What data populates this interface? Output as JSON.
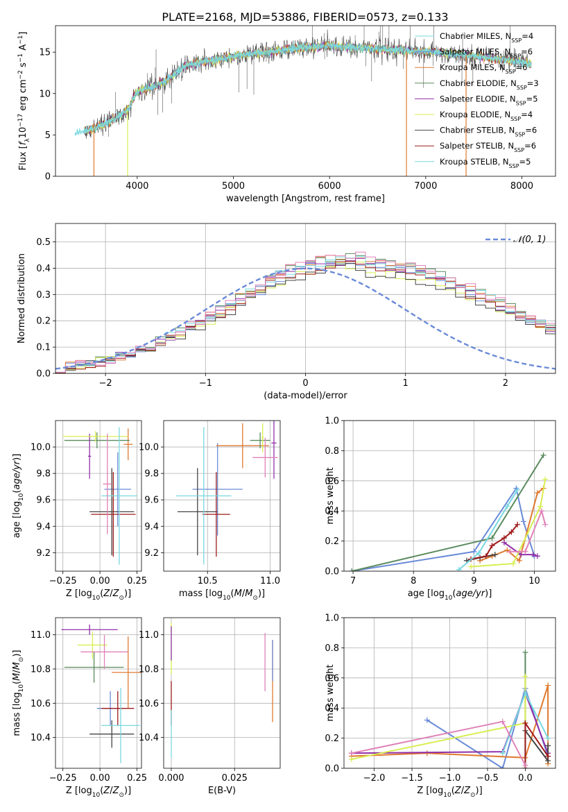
{
  "figure": {
    "title": "PLATE=2168, MJD=53886, FIBERID=0573, z=0.133"
  },
  "colors": {
    "blue": "#6a8ad8",
    "orange": "#e07a30",
    "green": "#5a8a5e",
    "purple": "#9030a8",
    "yellow": "#d8ee50",
    "gray": "#444444",
    "red": "#9e1a1a",
    "cyan": "#78d8e0",
    "pink": "#e080b8",
    "grid": "#b0b0b0"
  },
  "chart_data": [
    {
      "id": "spectrum",
      "type": "line",
      "xlabel": "wavelength [Angstrom, rest frame]",
      "ylabel": "Flux [f_λ10^-17 erg cm^-2 s^-1 A^-1]",
      "xlim": [
        3150,
        8350
      ],
      "ylim": [
        0,
        18.2
      ],
      "xticks": [
        4000,
        5000,
        6000,
        7000,
        8000
      ],
      "yticks": [
        0,
        5,
        10,
        15
      ],
      "grid": false,
      "legend_position": "top-right",
      "continuum": {
        "x": [
          3350,
          3500,
          3600,
          3700,
          3800,
          3900,
          4000,
          4100,
          4200,
          4300,
          4400,
          4500,
          4600,
          4700,
          4800,
          4900,
          5000,
          5200,
          5400,
          5600,
          5800,
          6000,
          6200,
          6400,
          6600,
          6800,
          7000,
          7200,
          7400,
          7600,
          7800,
          8000,
          8100
        ],
        "y": [
          5.2,
          5.6,
          6.0,
          6.5,
          7.2,
          8.0,
          10.3,
          10.6,
          11.0,
          11.5,
          12.5,
          13.4,
          13.6,
          13.9,
          14.0,
          14.2,
          14.5,
          14.8,
          15.1,
          15.4,
          15.6,
          15.8,
          15.6,
          15.5,
          15.3,
          15.2,
          15.1,
          14.9,
          14.7,
          14.4,
          14.1,
          13.8,
          13.5
        ]
      },
      "series": [
        {
          "name": "Chabrier MILES, N_SSP=4",
          "color": "#78d8e0"
        },
        {
          "name": "Salpeter MILES, N_SSP=6",
          "color": "#6a8ad8"
        },
        {
          "name": "Kroupa MILES, N_SSP=6",
          "color": "#e07a30"
        },
        {
          "name": "Chabrier ELODIE, N_SSP=3",
          "color": "#5a8a5e"
        },
        {
          "name": "Salpeter ELODIE, N_SSP=5",
          "color": "#9030a8"
        },
        {
          "name": "Kroupa ELODIE, N_SSP=4",
          "color": "#d8ee50"
        },
        {
          "name": "Chabrier STELIB, N_SSP=6",
          "color": "#444444"
        },
        {
          "name": "Salpeter STELIB, N_SSP=6",
          "color": "#9e1a1a"
        },
        {
          "name": "Kroupa STELIB, N_SSP=5",
          "color": "#78d8e0"
        }
      ],
      "legend_labels": [
        {
          "base": "Chabrier MILES, N",
          "sub": "SSP",
          "tail": "=4"
        },
        {
          "base": "Salpeter MILES, N",
          "sub": "SSP",
          "tail": "=6"
        },
        {
          "base": "Kroupa MILES, N",
          "sub": "SSP",
          "tail": "=6"
        },
        {
          "base": "Chabrier ELODIE, N",
          "sub": "SSP",
          "tail": "=3"
        },
        {
          "base": "Salpeter ELODIE, N",
          "sub": "SSP",
          "tail": "=5"
        },
        {
          "base": "Kroupa ELODIE, N",
          "sub": "SSP",
          "tail": "=4"
        },
        {
          "base": "Chabrier STELIB, N",
          "sub": "SSP",
          "tail": "=6"
        },
        {
          "base": "Salpeter STELIB, N",
          "sub": "SSP",
          "tail": "=6"
        },
        {
          "base": "Kroupa STELIB, N",
          "sub": "SSP",
          "tail": "=5"
        }
      ],
      "drops": [
        {
          "x": 3550,
          "color": "#e07a30"
        },
        {
          "x": 3900,
          "color": "#d8ee50"
        },
        {
          "x": 6800,
          "color": "#e07a30"
        },
        {
          "x": 7420,
          "color": "#e07a30"
        }
      ]
    },
    {
      "id": "residuals",
      "type": "histogram",
      "xlabel": "(data-model)/error",
      "ylabel": "Normed distribution",
      "xlim": [
        -2.5,
        2.5
      ],
      "ylim": [
        0,
        0.57
      ],
      "xticks": [
        -2,
        -1,
        0,
        1,
        2
      ],
      "yticks": [
        0.0,
        0.1,
        0.2,
        0.3,
        0.4,
        0.5
      ],
      "grid": true,
      "legend": "𝒩(0, 1)",
      "legend_position": "top-right",
      "bin_width": 0.1,
      "bin_start": -2.5,
      "reference_density": [
        0.018,
        0.022,
        0.027,
        0.033,
        0.04,
        0.048,
        0.058,
        0.068,
        0.08,
        0.093,
        0.108,
        0.124,
        0.141,
        0.159,
        0.178,
        0.197,
        0.218,
        0.238,
        0.258,
        0.278,
        0.296,
        0.314,
        0.33,
        0.345,
        0.358,
        0.369,
        0.378,
        0.385,
        0.391,
        0.395,
        0.398,
        0.398,
        0.397,
        0.394,
        0.389,
        0.382,
        0.374,
        0.364,
        0.352,
        0.339,
        0.325,
        0.31,
        0.294,
        0.277,
        0.26,
        0.242,
        0.224,
        0.207,
        0.189,
        0.172,
        0.156
      ],
      "series_colors": [
        "#6a8ad8",
        "#e07a30",
        "#5a8a5e",
        "#9030a8",
        "#d8ee50",
        "#444444",
        "#9e1a1a",
        "#78d8e0",
        "#e080b8"
      ]
    },
    {
      "id": "age_vs_Z",
      "type": "errorbar",
      "xlabel": "Z [log10(Z/Z⊙)]",
      "ylabel": "age  [log10(age/yr)]",
      "xlim": [
        -0.3,
        0.28
      ],
      "ylim": [
        9.06,
        10.2
      ],
      "xticks": [
        -0.25,
        0.0,
        0.25
      ],
      "xticklabels": [
        "−0.25",
        "0.00",
        "0.25"
      ],
      "yticks": [
        9.2,
        9.4,
        9.6,
        9.8,
        10.0
      ],
      "points": [
        {
          "x": 0.12,
          "y": 9.68,
          "xerr": 0.09,
          "yerr": 0.28,
          "color": "#6a8ad8"
        },
        {
          "x": 0.19,
          "y": 10.02,
          "xerr": 0.03,
          "yerr": 0.12,
          "color": "#e07a30"
        },
        {
          "x": -0.02,
          "y": 10.05,
          "xerr": 0.22,
          "yerr": 0.06,
          "color": "#5a8a5e"
        },
        {
          "x": -0.07,
          "y": 9.93,
          "xerr": 0.01,
          "yerr": 0.17,
          "color": "#9030a8"
        },
        {
          "x": -0.03,
          "y": 10.08,
          "xerr": 0.22,
          "yerr": 0.04,
          "color": "#d8ee50"
        },
        {
          "x": 0.08,
          "y": 9.51,
          "xerr": 0.15,
          "yerr": 0.33,
          "color": "#444444"
        },
        {
          "x": 0.09,
          "y": 9.49,
          "xerr": 0.15,
          "yerr": 0.32,
          "color": "#9e1a1a"
        },
        {
          "x": 0.13,
          "y": 9.63,
          "xerr": 0.12,
          "yerr": 0.52,
          "color": "#78d8e0"
        },
        {
          "x": 0.05,
          "y": 9.72,
          "xerr": 0.03,
          "yerr": 0.38,
          "color": "#e080b8"
        }
      ]
    },
    {
      "id": "age_vs_mass",
      "type": "errorbar",
      "xlabel": "mass [log10(M/M⊙)]",
      "ylabel": "",
      "xlim": [
        10.15,
        11.08
      ],
      "ylim": [
        9.06,
        10.2
      ],
      "xticks": [
        10.5,
        11.0
      ],
      "xticklabels": [
        "10.5",
        "11.0"
      ],
      "yticks": [
        9.2,
        9.4,
        9.6,
        9.8,
        10.0
      ],
      "points": [
        {
          "x": 10.58,
          "y": 9.68,
          "xerr": 0.2,
          "yerr": 0.35,
          "color": "#6a8ad8"
        },
        {
          "x": 10.78,
          "y": 10.01,
          "xerr": 0.21,
          "yerr": 0.17,
          "color": "#e07a30"
        },
        {
          "x": 10.92,
          "y": 10.05,
          "xerr": 0.08,
          "yerr": 0.06,
          "color": "#5a8a5e"
        },
        {
          "x": 11.03,
          "y": 10.03,
          "xerr": 0.02,
          "yerr": 0.27,
          "color": "#9030a8"
        },
        {
          "x": 10.94,
          "y": 10.07,
          "xerr": 0.01,
          "yerr": 0.11,
          "color": "#d8ee50"
        },
        {
          "x": 10.42,
          "y": 9.51,
          "xerr": 0.16,
          "yerr": 0.33,
          "color": "#444444"
        },
        {
          "x": 10.57,
          "y": 9.49,
          "xerr": 0.11,
          "yerr": 0.32,
          "color": "#9e1a1a"
        },
        {
          "x": 10.47,
          "y": 9.63,
          "xerr": 0.22,
          "yerr": 0.52,
          "color": "#78d8e0"
        },
        {
          "x": 10.96,
          "y": 9.92,
          "xerr": 0.1,
          "yerr": 0.15,
          "color": "#e080b8"
        }
      ]
    },
    {
      "id": "weight_vs_age",
      "type": "line",
      "xlabel": "age  [log10(age/yr)]",
      "ylabel": "mass weight",
      "xlim": [
        6.85,
        10.35
      ],
      "ylim": [
        0,
        1.0
      ],
      "xticks": [
        7,
        8,
        9,
        10
      ],
      "yticks": [
        0.0,
        0.2,
        0.4,
        0.6,
        0.8,
        1.0
      ],
      "grid": true,
      "series": [
        {
          "color": "#6a8ad8",
          "x": [
            6.98,
            9.0,
            9.7,
            9.82,
            10.0
          ],
          "y": [
            0.0,
            0.13,
            0.55,
            0.33,
            0.1
          ]
        },
        {
          "color": "#e07a30",
          "x": [
            9.1,
            9.3,
            9.55,
            9.75,
            10.05,
            10.15
          ],
          "y": [
            0.07,
            0.1,
            0.14,
            0.07,
            0.52,
            0.55
          ]
        },
        {
          "color": "#5a8a5e",
          "x": [
            6.98,
            9.3,
            10.15
          ],
          "y": [
            0.0,
            0.22,
            0.77
          ]
        },
        {
          "color": "#9030a8",
          "x": [
            9.5,
            9.78,
            9.98,
            10.05
          ],
          "y": [
            0.19,
            0.11,
            0.11,
            0.1
          ]
        },
        {
          "color": "#d8ee50",
          "x": [
            8.95,
            9.65,
            10.1,
            10.18
          ],
          "y": [
            0.03,
            0.05,
            0.43,
            0.61
          ]
        },
        {
          "color": "#444444",
          "x": [
            8.88,
            9.1,
            9.35
          ],
          "y": [
            0.07,
            0.09,
            0.11
          ]
        },
        {
          "color": "#9e1a1a",
          "x": [
            8.95,
            9.2,
            9.3,
            9.5,
            9.62,
            9.72
          ],
          "y": [
            0.08,
            0.1,
            0.17,
            0.22,
            0.26,
            0.31
          ]
        },
        {
          "color": "#78d8e0",
          "x": [
            8.75,
            9.08,
            9.55,
            9.72
          ],
          "y": [
            0.01,
            0.12,
            0.43,
            0.54
          ]
        },
        {
          "color": "#e080b8",
          "x": [
            9.6,
            9.85,
            10.12,
            10.18
          ],
          "y": [
            0.13,
            0.13,
            0.4,
            0.31
          ]
        }
      ]
    },
    {
      "id": "mass_vs_Z",
      "type": "errorbar",
      "xlabel": "Z [log10(Z/Z⊙)]",
      "ylabel": "mass [log10(M/M⊙)]",
      "xlim": [
        -0.3,
        0.28
      ],
      "ylim": [
        10.22,
        11.1
      ],
      "xticks": [
        -0.25,
        0.0,
        0.25
      ],
      "xticklabels": [
        "−0.25",
        "0.00",
        "0.25"
      ],
      "yticks": [
        10.4,
        10.6,
        10.8,
        11.0
      ],
      "points": [
        {
          "x": 0.07,
          "y": 10.57,
          "xerr": 0.09,
          "yerr": 0.1,
          "color": "#6a8ad8"
        },
        {
          "x": 0.19,
          "y": 10.78,
          "xerr": 0.11,
          "yerr": 0.21,
          "color": "#e07a30"
        },
        {
          "x": -0.04,
          "y": 10.81,
          "xerr": 0.2,
          "yerr": 0.09,
          "color": "#5a8a5e"
        },
        {
          "x": -0.07,
          "y": 11.03,
          "xerr": 0.19,
          "yerr": 0.03,
          "color": "#9030a8"
        },
        {
          "x": -0.05,
          "y": 10.94,
          "xerr": 0.1,
          "yerr": 0.08,
          "color": "#d8ee50"
        },
        {
          "x": 0.08,
          "y": 10.42,
          "xerr": 0.15,
          "yerr": 0.08,
          "color": "#444444"
        },
        {
          "x": 0.12,
          "y": 10.57,
          "xerr": 0.11,
          "yerr": 0.1,
          "color": "#9e1a1a"
        },
        {
          "x": 0.14,
          "y": 10.47,
          "xerr": 0.13,
          "yerr": 0.22,
          "color": "#78d8e0"
        },
        {
          "x": 0.03,
          "y": 10.9,
          "xerr": 0.16,
          "yerr": 0.1,
          "color": "#e080b8"
        }
      ]
    },
    {
      "id": "mass_vs_ebv",
      "type": "errorbar",
      "xlabel": "E(B-V)",
      "ylabel": "",
      "xlim": [
        -0.003,
        0.043
      ],
      "ylim": [
        10.22,
        11.1
      ],
      "xticks": [
        0.0,
        0.025
      ],
      "xticklabels": [
        "0.000",
        "0.025"
      ],
      "yticks": [
        10.4,
        10.6,
        10.8,
        11.0
      ],
      "points": [
        {
          "x": 0.04,
          "y": 10.73,
          "xerr": 0,
          "yerr": 0.24,
          "color": "#e07a30"
        },
        {
          "x": 0.04,
          "y": 10.85,
          "xerr": 0,
          "yerr": 0.12,
          "color": "#6a8ad8"
        },
        {
          "x": 0.037,
          "y": 10.84,
          "xerr": 0,
          "yerr": 0.17,
          "color": "#e080b8"
        },
        {
          "x": 0.0,
          "y": 10.92,
          "xerr": 0,
          "yerr": 0.15,
          "color": "#d8ee50"
        },
        {
          "x": 0.0,
          "y": 10.6,
          "xerr": 0,
          "yerr": 0.13,
          "color": "#9e1a1a"
        },
        {
          "x": 0.0,
          "y": 10.42,
          "xerr": 0,
          "yerr": 0.14,
          "color": "#78d8e0"
        },
        {
          "x": 0.0,
          "y": 10.95,
          "xerr": 0,
          "yerr": 0.1,
          "color": "#9030a8"
        }
      ]
    },
    {
      "id": "weight_vs_Z",
      "type": "line",
      "xlabel": "Z [log10(Z/Z⊙)]",
      "ylabel": "mass weight",
      "xlim": [
        -2.4,
        0.4
      ],
      "ylim": [
        0,
        1.0
      ],
      "xticks": [
        -2.0,
        -1.5,
        -1.0,
        -0.5,
        0.0
      ],
      "xticklabels": [
        "−2.0",
        "−1.5",
        "−1.0",
        "−0.5",
        "0.0"
      ],
      "yticks": [
        0.0,
        0.2,
        0.4,
        0.6,
        0.8,
        1.0
      ],
      "grid": true,
      "series": [
        {
          "color": "#6a8ad8",
          "x": [
            -1.3,
            -0.3,
            0.0,
            0.3
          ],
          "y": [
            0.32,
            0.0,
            0.53,
            0.08
          ]
        },
        {
          "color": "#e07a30",
          "x": [
            -2.3,
            -1.3,
            0.0,
            0.3,
            0.3
          ],
          "y": [
            0.08,
            0.1,
            0.07,
            0.55,
            0.03
          ]
        },
        {
          "color": "#5a8a5e",
          "x": [
            0.0,
            0.0
          ],
          "y": [
            0.0,
            0.77
          ]
        },
        {
          "color": "#9030a8",
          "x": [
            -2.3,
            -0.3,
            0.0,
            0.3
          ],
          "y": [
            0.1,
            0.11,
            0.5,
            0.1
          ]
        },
        {
          "color": "#d8ee50",
          "x": [
            -2.3,
            0.0,
            0.0
          ],
          "y": [
            0.06,
            0.3,
            0.61
          ]
        },
        {
          "color": "#444444",
          "x": [
            0.0,
            0.3,
            0.3
          ],
          "y": [
            0.25,
            0.05,
            0.15
          ]
        },
        {
          "color": "#9e1a1a",
          "x": [
            0.0,
            0.0,
            0.3
          ],
          "y": [
            0.0,
            0.3,
            0.08
          ]
        },
        {
          "color": "#78d8e0",
          "x": [
            -0.3,
            0.0,
            0.3
          ],
          "y": [
            0.1,
            0.5,
            0.2
          ]
        },
        {
          "color": "#e080b8",
          "x": [
            -2.3,
            -0.3,
            0.0
          ],
          "y": [
            0.1,
            0.31,
            0.02
          ]
        }
      ]
    }
  ]
}
